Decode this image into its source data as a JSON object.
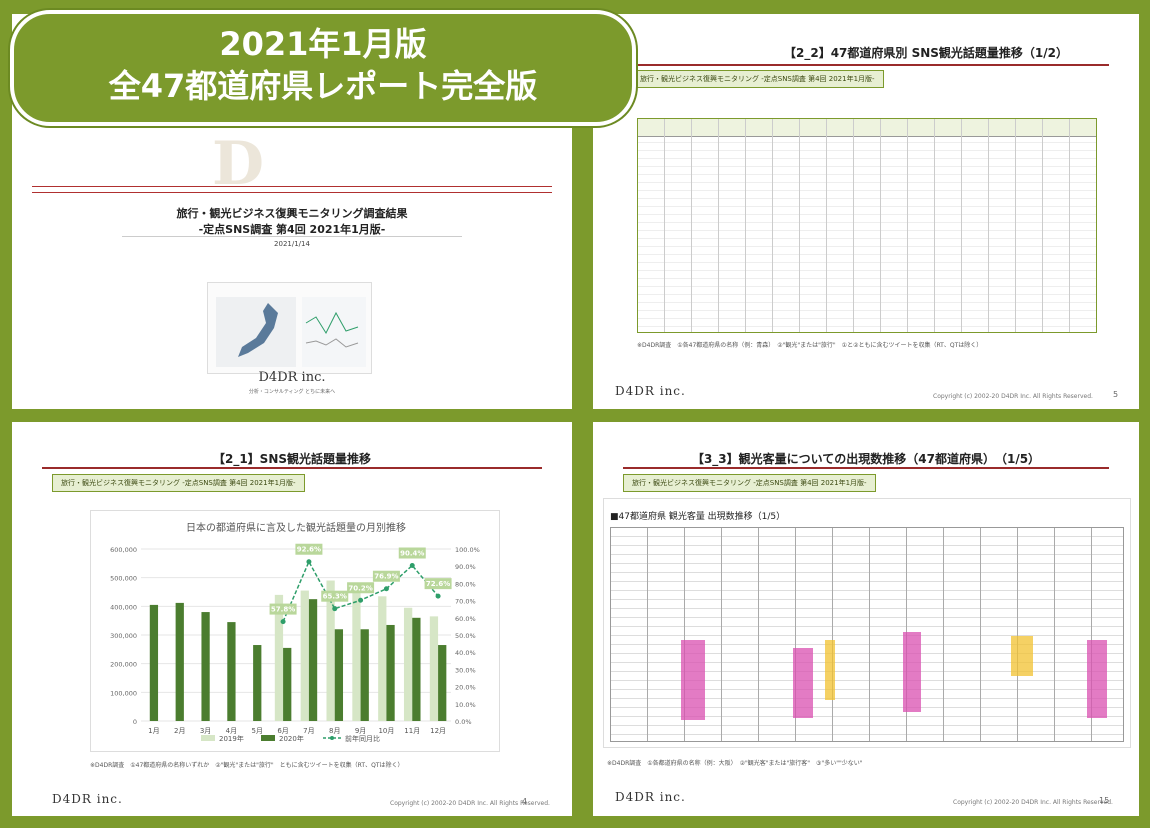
{
  "banner": {
    "line1": "2021年1月版",
    "line2": "全47都道府県レポート完全版"
  },
  "cover": {
    "title_line1": "旅行・観光ビジネス復興モニタリング調査結果",
    "title_line2": "-定点SNS調査 第4回 2021年1月版-",
    "date": "2021/1/14",
    "watermark": "D",
    "logo": "D4DR inc.",
    "tagline": "分析・コンサルティング とちに未来へ"
  },
  "pref_slide": {
    "title": "【2_2】47都道府県別 SNS観光話題量推移（1/2）",
    "tag": "旅行・観光ビジネス復興モニタリング -定点SNS調査 第4回 2021年1月版-",
    "note": "※D4DR調査　①各47都道府県の名称（例：青森）　②\"観光\"または\"旅行\"　①と②ともに含むツイートを収集（RT、QTは除く）",
    "logo": "D4DR inc.",
    "copyright": "Copyright (c) 2002-20 D4DR Inc. All Rights Reserved.",
    "page": "5"
  },
  "sns_slide": {
    "title": "【2_1】SNS観光話題量推移",
    "tag": "旅行・観光ビジネス復興モニタリング -定点SNS調査 第4回 2021年1月版-",
    "note": "※D4DR調査　①47都道府県の名称いずれか　②\"観光\"または\"旅行\"　ともに含むツイートを収集（RT、QTは除く）",
    "logo": "D4DR inc.",
    "copyright": "Copyright (c) 2002-20 D4DR Inc. All Rights Reserved.",
    "page": "4"
  },
  "tour_slide": {
    "title": "【3_3】観光客量についての出現数推移（47都道府県）　（1/5）",
    "tag": "旅行・観光ビジネス復興モニタリング -定点SNS調査 第4回 2021年1月版-",
    "table_title": "■47都道府県 観光客量 出現数推移（1/5）",
    "note": "※D4DR調査　①各都道府県の名称（例：大阪）　②\"観光客\"または\"旅行客\"　③\"多い\"\"少ない\"",
    "logo": "D4DR inc.",
    "copyright": "Copyright (c) 2002-20 D4DR Inc. All Rights Reserved.",
    "page": "15"
  },
  "chart_data": {
    "type": "bar",
    "title": "日本の都道府県に言及した観光話題量の月別推移",
    "categories": [
      "1月",
      "2月",
      "3月",
      "4月",
      "5月",
      "6月",
      "7月",
      "8月",
      "9月",
      "10月",
      "11月",
      "12月"
    ],
    "series": [
      {
        "name": "2019年",
        "type": "bar",
        "color": "#d6e6c6",
        "values": [
          0,
          0,
          0,
          0,
          0,
          440000,
          455000,
          490000,
          455000,
          435000,
          395000,
          365000
        ]
      },
      {
        "name": "2020年",
        "type": "bar",
        "color": "#4b7d2f",
        "values": [
          405000,
          412000,
          380000,
          345000,
          265000,
          255000,
          425000,
          320000,
          320000,
          335000,
          360000,
          265000
        ]
      },
      {
        "name": "前年同月比",
        "type": "line",
        "axis": "right",
        "color": "#2e9e6a",
        "values": [
          null,
          null,
          null,
          null,
          null,
          57.8,
          92.6,
          65.3,
          70.2,
          76.9,
          90.4,
          72.6
        ]
      }
    ],
    "data_labels": [
      "",
      "",
      "",
      "",
      "",
      "57.8%",
      "92.6%",
      "65.3%",
      "70.2%",
      "76.9%",
      "90.4%",
      "72.6%"
    ],
    "yticks": [
      "0",
      "100,000",
      "200,000",
      "300,000",
      "400,000",
      "500,000",
      "600,000"
    ],
    "y2ticks": [
      "0.0%",
      "10.0%",
      "20.0%",
      "30.0%",
      "40.0%",
      "50.0%",
      "60.0%",
      "70.0%",
      "80.0%",
      "90.0%",
      "100.0%"
    ],
    "ylim": [
      0,
      600000
    ],
    "y2lim": [
      0,
      100
    ],
    "legend_position": "bottom"
  }
}
